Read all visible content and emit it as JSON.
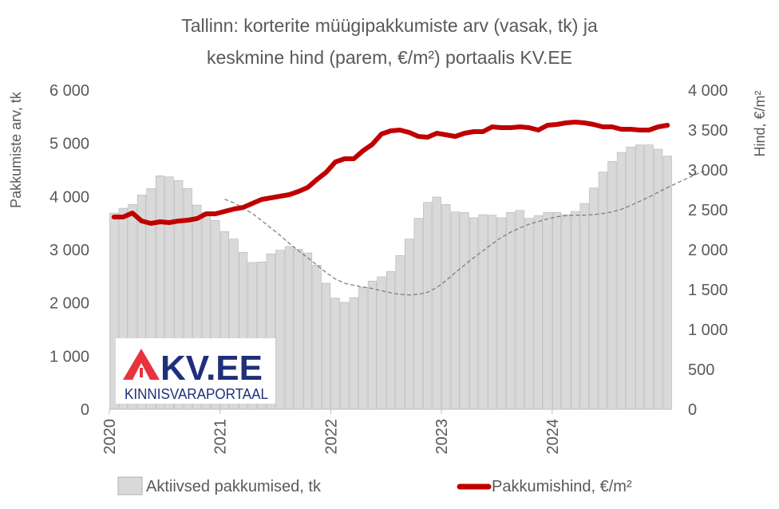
{
  "chart_data": {
    "type": "bar+line",
    "title_line1": "Tallinn: korterite müügipakkumiste arv (vasak, tk) ja",
    "title_line2": "keskmine hind (parem, €/m²) portaalis KV.EE",
    "ylabel_left": "Pakkumiste arv, tk",
    "ylabel_right": "Hind, €/m²",
    "ylim_left": [
      0,
      6000
    ],
    "ylim_right": [
      0,
      4000
    ],
    "yticks_left": [
      "0",
      "1 000",
      "2 000",
      "3 000",
      "4 000",
      "5 000",
      "6 000"
    ],
    "yticks_right": [
      "0",
      "500",
      "1 000",
      "1 500",
      "2 000",
      "2 500",
      "3 000",
      "3 500",
      "4 000"
    ],
    "x_start": "2020-01",
    "x_labels": [
      "2020",
      "2021",
      "2022",
      "2023",
      "2024"
    ],
    "grid": false,
    "legend_position": "bottom",
    "bar_color": "#d9d9d9",
    "line_color": "#c00000",
    "trend_color": "#7f7f7f",
    "series": [
      {
        "name": "Aktiivsed pakkumised, tk",
        "axis": "left",
        "values": [
          3690,
          3780,
          3850,
          4030,
          4150,
          4390,
          4370,
          4300,
          4150,
          3840,
          3700,
          3550,
          3340,
          3200,
          2950,
          2760,
          2770,
          2920,
          2990,
          3060,
          3010,
          2940,
          2710,
          2370,
          2090,
          2010,
          2100,
          2290,
          2410,
          2490,
          2590,
          2890,
          3200,
          3590,
          3890,
          3990,
          3850,
          3710,
          3700,
          3600,
          3660,
          3650,
          3600,
          3700,
          3740,
          3590,
          3640,
          3700,
          3700,
          3660,
          3720,
          3870,
          4160,
          4460,
          4660,
          4830,
          4930,
          4970,
          4970,
          4890,
          4760
        ]
      },
      {
        "name": "Pakkumishind, €/m²",
        "axis": "right",
        "values": [
          2410,
          2410,
          2460,
          2360,
          2330,
          2350,
          2340,
          2360,
          2370,
          2390,
          2450,
          2450,
          2480,
          2510,
          2530,
          2580,
          2630,
          2650,
          2670,
          2690,
          2730,
          2780,
          2880,
          2970,
          3100,
          3140,
          3140,
          3240,
          3320,
          3450,
          3490,
          3500,
          3470,
          3420,
          3410,
          3460,
          3440,
          3420,
          3460,
          3480,
          3480,
          3540,
          3530,
          3530,
          3540,
          3530,
          3500,
          3560,
          3570,
          3590,
          3600,
          3590,
          3570,
          3540,
          3540,
          3510,
          3510,
          3500,
          3500,
          3540,
          3560
        ]
      },
      {
        "axis": "left",
        "style": "dashed",
        "start_index": 12,
        "values": [
          3950,
          3880,
          3790,
          3680,
          3550,
          3410,
          3270,
          3120,
          2980,
          2850,
          2710,
          2570,
          2450,
          2370,
          2330,
          2300,
          2270,
          2230,
          2190,
          2160,
          2150,
          2160,
          2200,
          2290,
          2420,
          2570,
          2710,
          2850,
          2980,
          3110,
          3230,
          3330,
          3410,
          3480,
          3530,
          3580,
          3620,
          3640,
          3650,
          3650,
          3660,
          3680,
          3710,
          3760,
          3830,
          3910,
          3990,
          4080,
          4170,
          4250,
          4330,
          4410,
          4480
        ]
      }
    ]
  },
  "logo": {
    "brand": "KV.EE",
    "subtitle": "KINNISVARAPORTAAL",
    "red": "#e8323c",
    "navy": "#1f2f7a"
  }
}
